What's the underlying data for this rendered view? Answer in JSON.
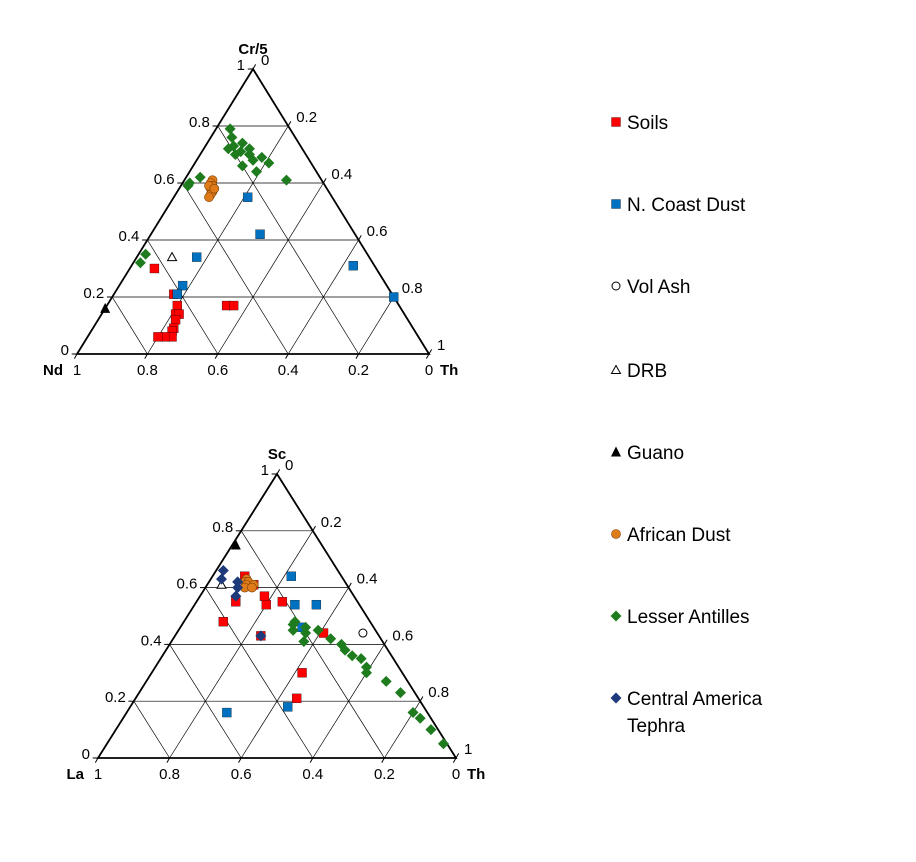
{
  "chart_data": [
    {
      "type": "ternary-scatter",
      "apex_label": "Cr/5",
      "left_label": "Nd",
      "right_label": "Th",
      "right_edge_ticks": [
        "0",
        "0.2",
        "0.4",
        "0.6",
        "0.8",
        "1"
      ],
      "left_edge_ticks": [
        "1",
        "0.8",
        "0.6",
        "0.4",
        "0.2",
        "0"
      ],
      "bottom_ticks": [
        "1",
        "0.8",
        "0.6",
        "0.4",
        "0.2",
        "0"
      ],
      "grid": true,
      "series": [
        {
          "name": "Soils",
          "points": [
            [
              0.3,
              0.63,
              0.07
            ],
            [
              0.21,
              0.62,
              0.17
            ],
            [
              0.17,
              0.63,
              0.2
            ],
            [
              0.14,
              0.65,
              0.21
            ],
            [
              0.14,
              0.64,
              0.22
            ],
            [
              0.12,
              0.66,
              0.22
            ],
            [
              0.09,
              0.68,
              0.23
            ],
            [
              0.08,
              0.69,
              0.23
            ],
            [
              0.06,
              0.7,
              0.24
            ],
            [
              0.06,
              0.72,
              0.22
            ],
            [
              0.06,
              0.74,
              0.2
            ],
            [
              0.17,
              0.49,
              0.34
            ],
            [
              0.17,
              0.47,
              0.36
            ]
          ]
        },
        {
          "name": "N. Coast Dust",
          "points": [
            [
              0.55,
              0.24,
              0.21
            ],
            [
              0.42,
              0.27,
              0.31
            ],
            [
              0.34,
              0.49,
              0.17
            ],
            [
              0.24,
              0.58,
              0.18
            ],
            [
              0.21,
              0.61,
              0.18
            ],
            [
              0.31,
              0.06,
              0.63
            ],
            [
              0.2,
              0.0,
              0.8
            ]
          ]
        },
        {
          "name": "Vol Ash",
          "points": []
        },
        {
          "name": "DRB",
          "points": [
            [
              0.34,
              0.56,
              0.1
            ]
          ]
        },
        {
          "name": "Guano",
          "points": [
            [
              0.16,
              0.84,
              0.0
            ]
          ]
        },
        {
          "name": "African Dust",
          "points": [
            [
              0.61,
              0.31,
              0.08
            ],
            [
              0.6,
              0.32,
              0.08
            ],
            [
              0.59,
              0.32,
              0.09
            ],
            [
              0.58,
              0.33,
              0.09
            ],
            [
              0.57,
              0.33,
              0.1
            ],
            [
              0.56,
              0.34,
              0.1
            ],
            [
              0.55,
              0.35,
              0.1
            ],
            [
              0.59,
              0.33,
              0.08
            ],
            [
              0.58,
              0.32,
              0.1
            ]
          ]
        },
        {
          "name": "Lesser Antilles",
          "points": [
            [
              0.79,
              0.17,
              0.04
            ],
            [
              0.76,
              0.18,
              0.06
            ],
            [
              0.74,
              0.16,
              0.1
            ],
            [
              0.73,
              0.19,
              0.08
            ],
            [
              0.72,
              0.15,
              0.13
            ],
            [
              0.72,
              0.21,
              0.07
            ],
            [
              0.71,
              0.18,
              0.11
            ],
            [
              0.7,
              0.16,
              0.14
            ],
            [
              0.7,
              0.2,
              0.1
            ],
            [
              0.69,
              0.13,
              0.18
            ],
            [
              0.68,
              0.16,
              0.16
            ],
            [
              0.67,
              0.12,
              0.21
            ],
            [
              0.66,
              0.2,
              0.14
            ],
            [
              0.64,
              0.17,
              0.19
            ],
            [
              0.61,
              0.1,
              0.29
            ],
            [
              0.62,
              0.34,
              0.04
            ],
            [
              0.6,
              0.38,
              0.02
            ],
            [
              0.59,
              0.39,
              0.02
            ],
            [
              0.35,
              0.63,
              0.02
            ],
            [
              0.32,
              0.66,
              0.02
            ]
          ]
        },
        {
          "name": "Central America Tephra",
          "points": []
        }
      ]
    },
    {
      "type": "ternary-scatter",
      "apex_label": "Sc",
      "left_label": "La",
      "right_label": "Th",
      "right_edge_ticks": [
        "0",
        "0.2",
        "0.4",
        "0.6",
        "0.8",
        "1"
      ],
      "left_edge_ticks": [
        "1",
        "0.8",
        "0.6",
        "0.4",
        "0.2",
        "0"
      ],
      "bottom_ticks": [
        "1",
        "0.8",
        "0.6",
        "0.4",
        "0.2",
        "0"
      ],
      "grid": true,
      "series": [
        {
          "name": "Soils",
          "points": [
            [
              0.64,
              0.27,
              0.09
            ],
            [
              0.61,
              0.26,
              0.13
            ],
            [
              0.57,
              0.25,
              0.18
            ],
            [
              0.55,
              0.21,
              0.24
            ],
            [
              0.54,
              0.26,
              0.2
            ],
            [
              0.55,
              0.34,
              0.11
            ],
            [
              0.48,
              0.41,
              0.11
            ],
            [
              0.43,
              0.33,
              0.24
            ],
            [
              0.44,
              0.15,
              0.41
            ],
            [
              0.3,
              0.28,
              0.42
            ],
            [
              0.21,
              0.34,
              0.45
            ]
          ]
        },
        {
          "name": "N. Coast Dust",
          "points": [
            [
              0.64,
              0.14,
              0.22
            ],
            [
              0.54,
              0.18,
              0.28
            ],
            [
              0.54,
              0.12,
              0.34
            ],
            [
              0.46,
              0.2,
              0.34
            ],
            [
              0.16,
              0.56,
              0.28
            ],
            [
              0.18,
              0.38,
              0.44
            ]
          ]
        },
        {
          "name": "Vol Ash",
          "points": [
            [
              0.44,
              0.04,
              0.52
            ]
          ]
        },
        {
          "name": "DRB",
          "points": [
            [
              0.61,
              0.35,
              0.04
            ]
          ]
        },
        {
          "name": "Guano",
          "points": [
            [
              0.75,
              0.24,
              0.01
            ]
          ]
        },
        {
          "name": "African Dust",
          "points": [
            [
              0.63,
              0.27,
              0.1
            ],
            [
              0.62,
              0.28,
              0.1
            ],
            [
              0.62,
              0.27,
              0.11
            ],
            [
              0.61,
              0.28,
              0.11
            ],
            [
              0.6,
              0.29,
              0.11
            ],
            [
              0.61,
              0.26,
              0.13
            ],
            [
              0.6,
              0.27,
              0.13
            ]
          ]
        },
        {
          "name": "Lesser Antilles",
          "points": [
            [
              0.48,
              0.21,
              0.31
            ],
            [
              0.47,
              0.22,
              0.31
            ],
            [
              0.46,
              0.19,
              0.35
            ],
            [
              0.45,
              0.23,
              0.32
            ],
            [
              0.44,
              0.2,
              0.36
            ],
            [
              0.45,
              0.16,
              0.39
            ],
            [
              0.42,
              0.14,
              0.44
            ],
            [
              0.4,
              0.12,
              0.48
            ],
            [
              0.38,
              0.12,
              0.5
            ],
            [
              0.36,
              0.11,
              0.53
            ],
            [
              0.35,
              0.09,
              0.56
            ],
            [
              0.32,
              0.09,
              0.59
            ],
            [
              0.27,
              0.06,
              0.67
            ],
            [
              0.23,
              0.04,
              0.73
            ],
            [
              0.16,
              0.04,
              0.8
            ],
            [
              0.14,
              0.03,
              0.83
            ],
            [
              0.1,
              0.02,
              0.88
            ],
            [
              0.05,
              0.01,
              0.94
            ],
            [
              0.41,
              0.22,
              0.37
            ],
            [
              0.3,
              0.1,
              0.6
            ]
          ]
        },
        {
          "name": "Central America Tephra",
          "points": [
            [
              0.66,
              0.32,
              0.02
            ],
            [
              0.63,
              0.34,
              0.03
            ],
            [
              0.62,
              0.3,
              0.08
            ],
            [
              0.6,
              0.31,
              0.09
            ],
            [
              0.57,
              0.33,
              0.1
            ],
            [
              0.43,
              0.33,
              0.24
            ]
          ]
        }
      ]
    }
  ],
  "legend": {
    "items": [
      {
        "label": "Soils",
        "shape": "square",
        "color": "#ff0000"
      },
      {
        "label": "N. Coast Dust",
        "shape": "square",
        "color": "#0070c0"
      },
      {
        "label": "Vol Ash",
        "shape": "circle-open",
        "color": "#000000"
      },
      {
        "label": "DRB",
        "shape": "triangle-open",
        "color": "#000000"
      },
      {
        "label": "Guano",
        "shape": "triangle",
        "color": "#000000"
      },
      {
        "label": "African Dust",
        "shape": "circle",
        "color": "#e07b1a"
      },
      {
        "label": "Lesser Antilles",
        "shape": "diamond",
        "color": "#1e7b1e"
      },
      {
        "label": "Central America\nTephra",
        "shape": "diamond",
        "color": "#1f3a7a"
      }
    ]
  }
}
